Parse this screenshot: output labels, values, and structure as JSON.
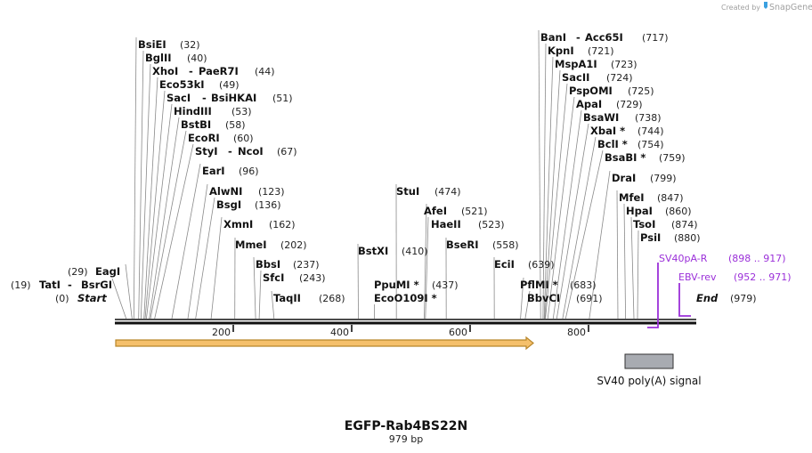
{
  "watermark": {
    "text": "Created by",
    "brand": "SnapGene"
  },
  "map": {
    "title": "EGFP-Rab4BS22N",
    "length_label": "979 bp",
    "length": 979,
    "start_label": "Start",
    "start_pos": "(0)",
    "end_label": "End",
    "end_pos": "(979)",
    "ticks": [
      {
        "value": 200,
        "label": "200"
      },
      {
        "value": 400,
        "label": "400"
      },
      {
        "value": 600,
        "label": "600"
      },
      {
        "value": 800,
        "label": "800"
      }
    ],
    "sites": [
      {
        "name": "TatI",
        "name2": "BsrGI",
        "pos": "(19)",
        "bp": 19
      },
      {
        "name": "EagI",
        "pos": "(29)",
        "bp": 29
      },
      {
        "name": "BsiEI",
        "pos": "(32)",
        "bp": 32
      },
      {
        "name": "BglII",
        "pos": "(40)",
        "bp": 40
      },
      {
        "name": "XhoI",
        "name2": "PaeR7I",
        "pos": "(44)",
        "bp": 44
      },
      {
        "name": "Eco53kI",
        "pos": "(49)",
        "bp": 49
      },
      {
        "name": "SacI",
        "name2": "BsiHKAI",
        "pos": "(51)",
        "bp": 51
      },
      {
        "name": "HindIII",
        "pos": "(53)",
        "bp": 53
      },
      {
        "name": "BstBI",
        "pos": "(58)",
        "bp": 58
      },
      {
        "name": "EcoRI",
        "pos": "(60)",
        "bp": 60
      },
      {
        "name": "StyI",
        "name2": "NcoI",
        "pos": "(67)",
        "bp": 67
      },
      {
        "name": "EarI",
        "pos": "(96)",
        "bp": 96
      },
      {
        "name": "AlwNI",
        "pos": "(123)",
        "bp": 123
      },
      {
        "name": "BsgI",
        "pos": "(136)",
        "bp": 136
      },
      {
        "name": "XmnI",
        "pos": "(162)",
        "bp": 162
      },
      {
        "name": "MmeI",
        "pos": "(202)",
        "bp": 202
      },
      {
        "name": "BbsI",
        "pos": "(237)",
        "bp": 237
      },
      {
        "name": "SfcI",
        "pos": "(243)",
        "bp": 243
      },
      {
        "name": "TaqII",
        "pos": "(268)",
        "bp": 268
      },
      {
        "name": "BstXI",
        "pos": "(410)",
        "bp": 410
      },
      {
        "name": "StuI",
        "pos": "(474)",
        "bp": 474
      },
      {
        "name": "PpuMI *",
        "pos": "(437)",
        "bp": 437
      },
      {
        "name": "EcoO109I *",
        "pos": "",
        "bp": 437
      },
      {
        "name": "AfeI",
        "pos": "(521)",
        "bp": 521
      },
      {
        "name": "HaeII",
        "pos": "(523)",
        "bp": 523
      },
      {
        "name": "BseRI",
        "pos": "(558)",
        "bp": 558
      },
      {
        "name": "EciI",
        "pos": "(639)",
        "bp": 639
      },
      {
        "name": "PflMI *",
        "pos": "(683)",
        "bp": 683
      },
      {
        "name": "BbvCI",
        "pos": "(691)",
        "bp": 691
      },
      {
        "name": "BanI",
        "name2": "Acc65I",
        "pos": "(717)",
        "bp": 717
      },
      {
        "name": "KpnI",
        "pos": "(721)",
        "bp": 721
      },
      {
        "name": "MspA1I",
        "pos": "(723)",
        "bp": 723
      },
      {
        "name": "SacII",
        "pos": "(724)",
        "bp": 724
      },
      {
        "name": "PspOMI",
        "pos": "(725)",
        "bp": 725
      },
      {
        "name": "ApaI",
        "pos": "(729)",
        "bp": 729
      },
      {
        "name": "BsaWI",
        "pos": "(738)",
        "bp": 738
      },
      {
        "name": "XbaI *",
        "pos": "(744)",
        "bp": 744
      },
      {
        "name": "BclI *",
        "pos": "(754)",
        "bp": 754
      },
      {
        "name": "BsaBI *",
        "pos": "(759)",
        "bp": 759
      },
      {
        "name": "DraI",
        "pos": "(799)",
        "bp": 799
      },
      {
        "name": "MfeI",
        "pos": "(847)",
        "bp": 847
      },
      {
        "name": "HpaI",
        "pos": "(860)",
        "bp": 860
      },
      {
        "name": "TsoI",
        "pos": "(874)",
        "bp": 874
      },
      {
        "name": "PsiI",
        "pos": "(880)",
        "bp": 880
      }
    ],
    "primers": [
      {
        "name": "SV40pA-R",
        "range": "(898 .. 917)",
        "start": 898,
        "end": 917,
        "dir": "reverse"
      },
      {
        "name": "EBV-rev",
        "range": "(952 .. 971)",
        "start": 952,
        "end": 971,
        "dir": "reverse"
      }
    ],
    "features": [
      {
        "type": "orf",
        "start": 0,
        "end": 703,
        "color": "#f5c06b"
      },
      {
        "type": "polyA_signal",
        "label": "SV40 poly(A) signal",
        "start": 860,
        "end": 941,
        "color": "#a8abb1"
      }
    ],
    "colors": {
      "primer": "#9b30d9",
      "backbone": "#111111",
      "orf": "#f5c06b",
      "polyA": "#a8abb1"
    }
  }
}
